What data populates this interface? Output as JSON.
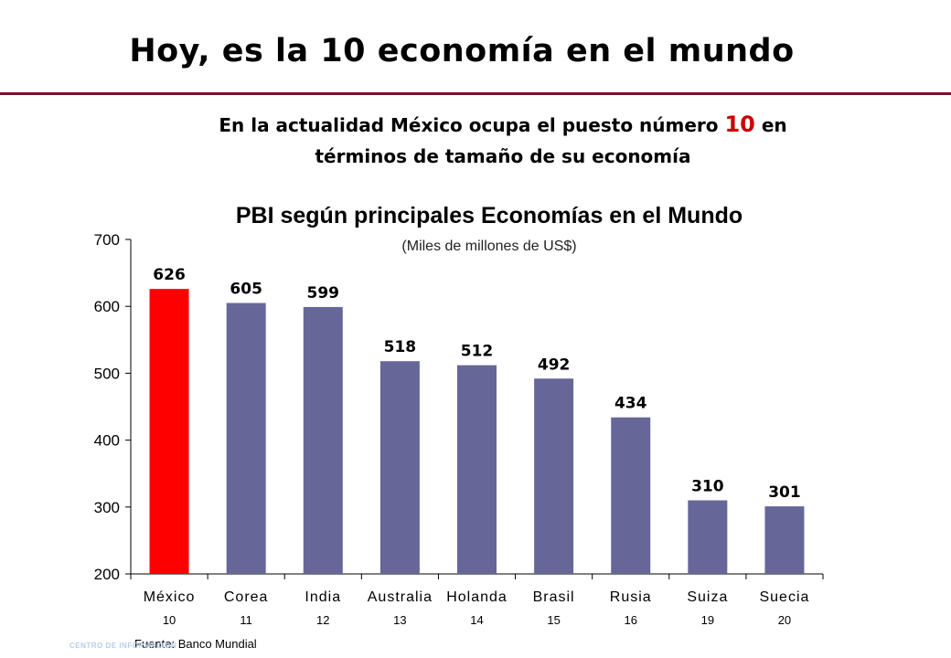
{
  "slide": {
    "title": "Hoy, es la 10 economía en el mundo",
    "subtitle_line1_before": "En la actualidad México ocupa el puesto número ",
    "subtitle_highlight": "10",
    "subtitle_line1_after": " en",
    "subtitle_line2": "términos de tamaño de su economía",
    "ranks": [
      "10",
      "11",
      "12",
      "13",
      "14",
      "15",
      "16",
      "19",
      "20"
    ],
    "source": "Fuente: Banco Mundial",
    "footer_logo_text": "CENTRO DE INFORMACION"
  },
  "colors": {
    "title_rule": "#7a1030",
    "highlight_bar": "#ff0000",
    "default_bar": "#666699",
    "subtitle_highlight": "#cc0000"
  },
  "chart_data": {
    "type": "bar",
    "title": "PBI según principales Economías en el Mundo",
    "subtitle": "(Miles de millones de US$)",
    "categories": [
      "México",
      "Corea",
      "India",
      "Australia",
      "Holanda",
      "Brasil",
      "Rusia",
      "Suiza",
      "Suecia"
    ],
    "values": [
      626,
      605,
      599,
      518,
      512,
      492,
      434,
      310,
      301
    ],
    "data_labels": [
      "626",
      "605",
      "599",
      "518",
      "512",
      "492",
      "434",
      "310",
      "301"
    ],
    "highlight_index": 0,
    "ylim": [
      200,
      700
    ],
    "yticks": [
      200,
      300,
      400,
      500,
      600,
      700
    ],
    "xlabel": "",
    "ylabel": "",
    "grid": false,
    "legend": "none"
  }
}
